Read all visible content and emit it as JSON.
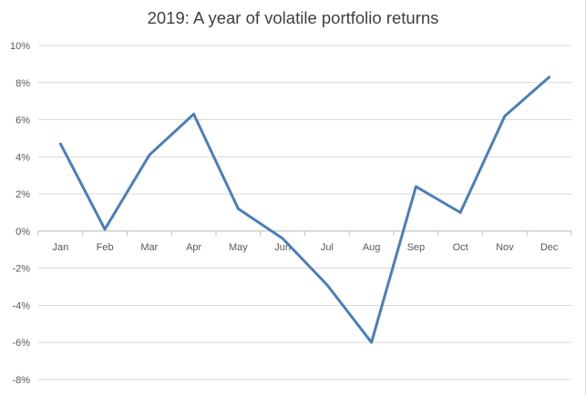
{
  "chart_data": {
    "type": "line",
    "title": "2019: A year of volatile portfolio returns",
    "categories": [
      "Jan",
      "Feb",
      "Mar",
      "Apr",
      "May",
      "Jun",
      "Jul",
      "Aug",
      "Sep",
      "Oct",
      "Nov",
      "Dec"
    ],
    "series": [
      {
        "values": [
          4.7,
          0.1,
          4.1,
          6.3,
          1.2,
          -0.4,
          -2.9,
          -6.0,
          2.4,
          1.0,
          6.2,
          8.3
        ],
        "color": "#4a7ebb"
      }
    ],
    "y_ticks": [
      "10%",
      "8%",
      "6%",
      "4%",
      "2%",
      "0%",
      "-2%",
      "-4%",
      "-6%",
      "-8%"
    ],
    "ylim": [
      -8,
      10
    ],
    "y_unit": "%",
    "grid": "horizontal",
    "xlabel": "",
    "ylabel": ""
  }
}
